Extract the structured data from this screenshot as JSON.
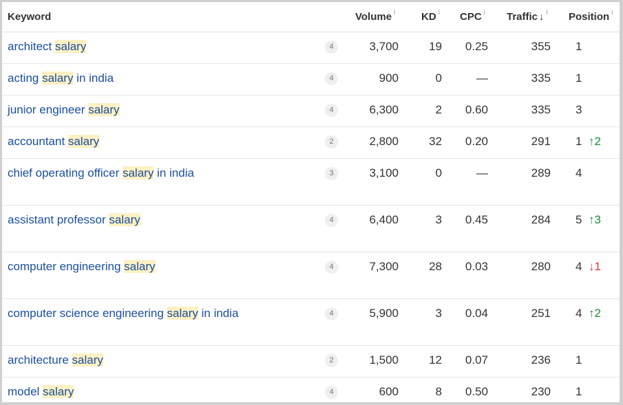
{
  "headers": {
    "keyword": "Keyword",
    "volume": "Volume",
    "kd": "KD",
    "cpc": "CPC",
    "traffic": "Traffic",
    "position": "Position",
    "info_glyph": "i",
    "sort_glyph": "↓"
  },
  "rows": [
    {
      "kw_before": "architect ",
      "kw_hl": "salary",
      "kw_after": "",
      "badge": "4",
      "volume": "3,700",
      "kd": "19",
      "cpc": "0.25",
      "traffic": "355",
      "position": "1",
      "change": "",
      "change_dir": ""
    },
    {
      "kw_before": "acting ",
      "kw_hl": "salary",
      "kw_after": " in india",
      "badge": "4",
      "volume": "900",
      "kd": "0",
      "cpc": "—",
      "traffic": "335",
      "position": "1",
      "change": "",
      "change_dir": ""
    },
    {
      "kw_before": "junior engineer ",
      "kw_hl": "salary",
      "kw_after": "",
      "badge": "4",
      "volume": "6,300",
      "kd": "2",
      "cpc": "0.60",
      "traffic": "335",
      "position": "3",
      "change": "",
      "change_dir": ""
    },
    {
      "kw_before": "accountant ",
      "kw_hl": "salary",
      "kw_after": "",
      "badge": "2",
      "volume": "2,800",
      "kd": "32",
      "cpc": "0.20",
      "traffic": "291",
      "position": "1",
      "change": "↑2",
      "change_dir": "up"
    },
    {
      "kw_before": "chief operating officer ",
      "kw_hl": "salary",
      "kw_after": " in india",
      "badge": "3",
      "volume": "3,100",
      "kd": "0",
      "cpc": "—",
      "traffic": "289",
      "position": "4",
      "change": "",
      "change_dir": ""
    },
    {
      "kw_before": "assistant professor ",
      "kw_hl": "salary",
      "kw_after": "",
      "badge": "4",
      "volume": "6,400",
      "kd": "3",
      "cpc": "0.45",
      "traffic": "284",
      "position": "5",
      "change": "↑3",
      "change_dir": "up"
    },
    {
      "kw_before": "computer engineering ",
      "kw_hl": "salary",
      "kw_after": "",
      "badge": "4",
      "volume": "7,300",
      "kd": "28",
      "cpc": "0.03",
      "traffic": "280",
      "position": "4",
      "change": "↓1",
      "change_dir": "down"
    },
    {
      "kw_before": "computer science engineering ",
      "kw_hl": "salary",
      "kw_after": " in india",
      "badge": "4",
      "volume": "5,900",
      "kd": "3",
      "cpc": "0.04",
      "traffic": "251",
      "position": "4",
      "change": "↑2",
      "change_dir": "up"
    },
    {
      "kw_before": "architecture ",
      "kw_hl": "salary",
      "kw_after": "",
      "badge": "2",
      "volume": "1,500",
      "kd": "12",
      "cpc": "0.07",
      "traffic": "236",
      "position": "1",
      "change": "",
      "change_dir": ""
    },
    {
      "kw_before": "model ",
      "kw_hl": "salary",
      "kw_after": "",
      "badge": "4",
      "volume": "600",
      "kd": "8",
      "cpc": "0.50",
      "traffic": "230",
      "position": "1",
      "change": "",
      "change_dir": ""
    }
  ],
  "colors": {
    "link": "#1a4fa0",
    "highlight": "#fdf0c2",
    "up": "#1c8a3a",
    "down": "#dd3333"
  }
}
